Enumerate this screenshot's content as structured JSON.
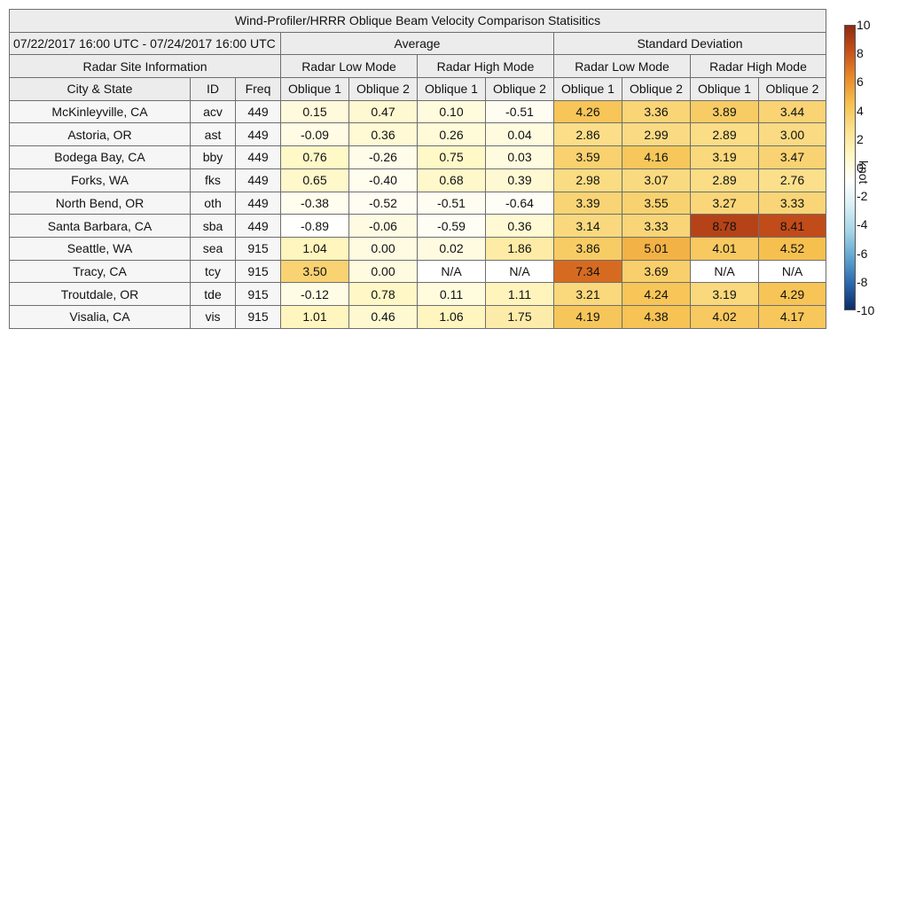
{
  "chart_data": {
    "type": "table",
    "title": "Wind-Profiler/HRRR Oblique Beam Velocity Comparison Statisitics",
    "date_range": "07/22/2017 16:00 UTC - 07/24/2017 16:00 UTC",
    "group_headers": {
      "average": "Average",
      "std": "Standard Deviation",
      "site_info": "Radar Site Information"
    },
    "mode_headers": [
      "Radar Low Mode",
      "Radar High Mode",
      "Radar Low Mode",
      "Radar High Mode"
    ],
    "column_headers": [
      "City & State",
      "ID",
      "Freq",
      "Oblique 1",
      "Oblique 2",
      "Oblique 1",
      "Oblique 2",
      "Oblique 1",
      "Oblique 2",
      "Oblique 1",
      "Oblique 2"
    ],
    "rows": [
      {
        "city": "McKinleyville, CA",
        "id": "acv",
        "freq": "449",
        "values": [
          "0.15",
          "0.47",
          "0.10",
          "-0.51",
          "4.26",
          "3.36",
          "3.89",
          "3.44"
        ]
      },
      {
        "city": "Astoria, OR",
        "id": "ast",
        "freq": "449",
        "values": [
          "-0.09",
          "0.36",
          "0.26",
          "0.04",
          "2.86",
          "2.99",
          "2.89",
          "3.00"
        ]
      },
      {
        "city": "Bodega Bay, CA",
        "id": "bby",
        "freq": "449",
        "values": [
          "0.76",
          "-0.26",
          "0.75",
          "0.03",
          "3.59",
          "4.16",
          "3.19",
          "3.47"
        ]
      },
      {
        "city": "Forks, WA",
        "id": "fks",
        "freq": "449",
        "values": [
          "0.65",
          "-0.40",
          "0.68",
          "0.39",
          "2.98",
          "3.07",
          "2.89",
          "2.76"
        ]
      },
      {
        "city": "North Bend, OR",
        "id": "oth",
        "freq": "449",
        "values": [
          "-0.38",
          "-0.52",
          "-0.51",
          "-0.64",
          "3.39",
          "3.55",
          "3.27",
          "3.33"
        ]
      },
      {
        "city": "Santa Barbara, CA",
        "id": "sba",
        "freq": "449",
        "values": [
          "-0.89",
          "-0.06",
          "-0.59",
          "0.36",
          "3.14",
          "3.33",
          "8.78",
          "8.41"
        ]
      },
      {
        "city": "Seattle, WA",
        "id": "sea",
        "freq": "915",
        "values": [
          "1.04",
          "0.00",
          "0.02",
          "1.86",
          "3.86",
          "5.01",
          "4.01",
          "4.52"
        ]
      },
      {
        "city": "Tracy, CA",
        "id": "tcy",
        "freq": "915",
        "values": [
          "3.50",
          "0.00",
          "N/A",
          "N/A",
          "7.34",
          "3.69",
          "N/A",
          "N/A"
        ]
      },
      {
        "city": "Troutdale, OR",
        "id": "tde",
        "freq": "915",
        "values": [
          "-0.12",
          "0.78",
          "0.11",
          "1.11",
          "3.21",
          "4.24",
          "3.19",
          "4.29"
        ]
      },
      {
        "city": "Visalia, CA",
        "id": "vis",
        "freq": "915",
        "values": [
          "1.01",
          "0.46",
          "1.06",
          "1.75",
          "4.19",
          "4.38",
          "4.02",
          "4.17"
        ]
      }
    ],
    "colorbar": {
      "range": [
        -10,
        10
      ],
      "ticks": [
        "10",
        "8",
        "6",
        "4",
        "2",
        "0",
        "-2",
        "-4",
        "-6",
        "-8",
        "-10"
      ],
      "unit": "knot",
      "stops": [
        "#0b2c66",
        "#2a66ad",
        "#5fa4cf",
        "#a3d3e6",
        "#d6eef5",
        "#ffffff",
        "#fff7c2",
        "#fbe08c",
        "#f6c04e",
        "#e9892a",
        "#c8501a",
        "#8e2a10"
      ]
    },
    "na_color": "#ffffff"
  }
}
